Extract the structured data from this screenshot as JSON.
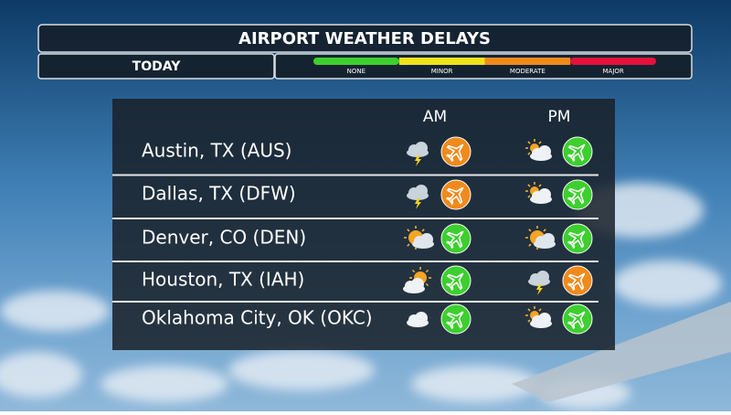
{
  "header": {
    "title": "AIRPORT WEATHER DELAYS",
    "day": "TODAY"
  },
  "legend": [
    {
      "label": "NONE",
      "color": "#3ccf2e"
    },
    {
      "label": "MINOR",
      "color": "#f0e21a"
    },
    {
      "label": "MODERATE",
      "color": "#f08a1c"
    },
    {
      "label": "MAJOR",
      "color": "#e4123a"
    }
  ],
  "table": {
    "columns": [
      "AM",
      "PM"
    ],
    "rows": [
      {
        "airport": "Austin, TX (AUS)",
        "am": "MODERATE",
        "pm": "NONE"
      },
      {
        "airport": "Dallas, TX (DFW)",
        "am": "MODERATE",
        "pm": "NONE"
      },
      {
        "airport": "Denver, CO (DEN)",
        "am": "NONE",
        "pm": "NONE"
      },
      {
        "airport": "Houston, TX (IAH)",
        "am": "NONE",
        "pm": "MODERATE"
      },
      {
        "airport": "Oklahoma City, OK (OKC)",
        "am": "NONE",
        "pm": "NONE"
      }
    ]
  }
}
